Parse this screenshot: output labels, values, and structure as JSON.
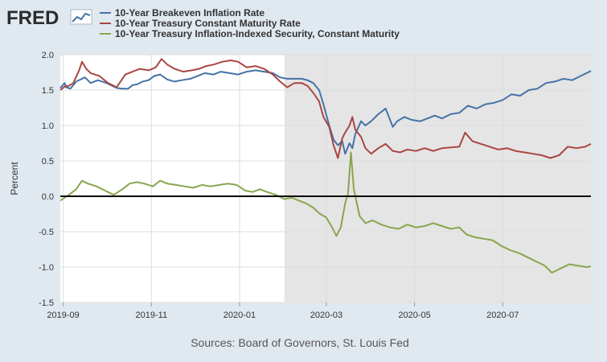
{
  "branding": {
    "logo_text": "FRED"
  },
  "source_note": "Sources: Board of Governors, St. Louis Fed",
  "colors": {
    "background": "#e1e9f0",
    "plot_background": "#ffffff",
    "recession_shade": "#e5e5e5",
    "grid": "#dddddd",
    "zero_line": "#000000"
  },
  "chart_data": {
    "type": "line",
    "ylabel": "Percent",
    "ylim": [
      -1.5,
      2.0
    ],
    "yticks": [
      "2.0",
      "1.5",
      "1.0",
      "0.5",
      "0.0",
      "-0.5",
      "-1.0",
      "-1.5"
    ],
    "xlim": [
      "2019-08-30",
      "2020-08-31"
    ],
    "xticks": [
      "2019-09",
      "2019-11",
      "2020-01",
      "2020-03",
      "2020-05",
      "2020-07"
    ],
    "legend_position": "top",
    "grid": true,
    "shaded_region": {
      "from": "2020-02-01",
      "to": "2020-08-31"
    },
    "zero_line": 0,
    "series": [
      {
        "name": "10-Year Breakeven Inflation Rate",
        "color": "#4572a7",
        "points": [
          [
            "2019-08-30",
            1.53
          ],
          [
            "2019-09-02",
            1.6
          ],
          [
            "2019-09-03",
            1.54
          ],
          [
            "2019-09-06",
            1.52
          ],
          [
            "2019-09-10",
            1.62
          ],
          [
            "2019-09-16",
            1.68
          ],
          [
            "2019-09-20",
            1.6
          ],
          [
            "2019-09-25",
            1.64
          ],
          [
            "2019-10-01",
            1.6
          ],
          [
            "2019-10-08",
            1.53
          ],
          [
            "2019-10-12",
            1.52
          ],
          [
            "2019-10-16",
            1.52
          ],
          [
            "2019-10-19",
            1.57
          ],
          [
            "2019-10-22",
            1.58
          ],
          [
            "2019-10-26",
            1.62
          ],
          [
            "2019-10-30",
            1.64
          ],
          [
            "2019-11-03",
            1.7
          ],
          [
            "2019-11-07",
            1.72
          ],
          [
            "2019-11-12",
            1.65
          ],
          [
            "2019-11-17",
            1.62
          ],
          [
            "2019-11-22",
            1.64
          ],
          [
            "2019-11-28",
            1.66
          ],
          [
            "2019-12-03",
            1.7
          ],
          [
            "2019-12-08",
            1.74
          ],
          [
            "2019-12-14",
            1.72
          ],
          [
            "2019-12-19",
            1.76
          ],
          [
            "2019-12-25",
            1.74
          ],
          [
            "2019-12-31",
            1.72
          ],
          [
            "2020-01-06",
            1.76
          ],
          [
            "2020-01-12",
            1.78
          ],
          [
            "2020-01-18",
            1.76
          ],
          [
            "2020-01-24",
            1.74
          ],
          [
            "2020-01-29",
            1.68
          ],
          [
            "2020-02-03",
            1.66
          ],
          [
            "2020-02-08",
            1.66
          ],
          [
            "2020-02-13",
            1.66
          ],
          [
            "2020-02-17",
            1.64
          ],
          [
            "2020-02-21",
            1.6
          ],
          [
            "2020-02-25",
            1.5
          ],
          [
            "2020-02-28",
            1.3
          ],
          [
            "2020-03-03",
            1.0
          ],
          [
            "2020-03-06",
            0.8
          ],
          [
            "2020-03-09",
            0.72
          ],
          [
            "2020-03-12",
            0.78
          ],
          [
            "2020-03-14",
            0.6
          ],
          [
            "2020-03-17",
            0.75
          ],
          [
            "2020-03-19",
            0.68
          ],
          [
            "2020-03-21",
            0.88
          ],
          [
            "2020-03-25",
            1.06
          ],
          [
            "2020-03-28",
            1.0
          ],
          [
            "2020-04-01",
            1.06
          ],
          [
            "2020-04-06",
            1.16
          ],
          [
            "2020-04-11",
            1.24
          ],
          [
            "2020-04-16",
            0.98
          ],
          [
            "2020-04-19",
            1.06
          ],
          [
            "2020-04-24",
            1.12
          ],
          [
            "2020-04-29",
            1.08
          ],
          [
            "2020-05-05",
            1.06
          ],
          [
            "2020-05-10",
            1.1
          ],
          [
            "2020-05-15",
            1.14
          ],
          [
            "2020-05-20",
            1.1
          ],
          [
            "2020-05-26",
            1.16
          ],
          [
            "2020-06-01",
            1.18
          ],
          [
            "2020-06-07",
            1.28
          ],
          [
            "2020-06-13",
            1.24
          ],
          [
            "2020-06-19",
            1.3
          ],
          [
            "2020-06-25",
            1.32
          ],
          [
            "2020-07-01",
            1.36
          ],
          [
            "2020-07-07",
            1.44
          ],
          [
            "2020-07-13",
            1.42
          ],
          [
            "2020-07-19",
            1.5
          ],
          [
            "2020-07-25",
            1.52
          ],
          [
            "2020-07-31",
            1.6
          ],
          [
            "2020-08-06",
            1.62
          ],
          [
            "2020-08-12",
            1.66
          ],
          [
            "2020-08-18",
            1.64
          ],
          [
            "2020-08-24",
            1.7
          ],
          [
            "2020-08-31",
            1.77
          ]
        ]
      },
      {
        "name": "10-Year Treasury Constant Maturity Rate",
        "color": "#aa4643",
        "points": [
          [
            "2019-08-30",
            1.5
          ],
          [
            "2019-09-02",
            1.55
          ],
          [
            "2019-09-05",
            1.56
          ],
          [
            "2019-09-08",
            1.6
          ],
          [
            "2019-09-12",
            1.78
          ],
          [
            "2019-09-14",
            1.9
          ],
          [
            "2019-09-17",
            1.8
          ],
          [
            "2019-09-20",
            1.74
          ],
          [
            "2019-09-26",
            1.7
          ],
          [
            "2019-10-02",
            1.6
          ],
          [
            "2019-10-08",
            1.54
          ],
          [
            "2019-10-14",
            1.72
          ],
          [
            "2019-10-19",
            1.76
          ],
          [
            "2019-10-24",
            1.8
          ],
          [
            "2019-10-30",
            1.78
          ],
          [
            "2019-11-04",
            1.82
          ],
          [
            "2019-11-08",
            1.94
          ],
          [
            "2019-11-12",
            1.86
          ],
          [
            "2019-11-17",
            1.8
          ],
          [
            "2019-11-23",
            1.76
          ],
          [
            "2019-11-29",
            1.78
          ],
          [
            "2019-12-04",
            1.8
          ],
          [
            "2019-12-09",
            1.84
          ],
          [
            "2019-12-14",
            1.86
          ],
          [
            "2019-12-20",
            1.9
          ],
          [
            "2019-12-26",
            1.92
          ],
          [
            "2019-12-31",
            1.9
          ],
          [
            "2020-01-06",
            1.82
          ],
          [
            "2020-01-12",
            1.84
          ],
          [
            "2020-01-18",
            1.8
          ],
          [
            "2020-01-24",
            1.72
          ],
          [
            "2020-01-29",
            1.62
          ],
          [
            "2020-02-03",
            1.54
          ],
          [
            "2020-02-08",
            1.6
          ],
          [
            "2020-02-13",
            1.6
          ],
          [
            "2020-02-17",
            1.56
          ],
          [
            "2020-02-21",
            1.46
          ],
          [
            "2020-02-25",
            1.34
          ],
          [
            "2020-02-28",
            1.12
          ],
          [
            "2020-03-03",
            0.98
          ],
          [
            "2020-03-06",
            0.72
          ],
          [
            "2020-03-09",
            0.54
          ],
          [
            "2020-03-12",
            0.82
          ],
          [
            "2020-03-14",
            0.9
          ],
          [
            "2020-03-17",
            1.0
          ],
          [
            "2020-03-19",
            1.12
          ],
          [
            "2020-03-21",
            0.94
          ],
          [
            "2020-03-25",
            0.84
          ],
          [
            "2020-03-28",
            0.68
          ],
          [
            "2020-04-01",
            0.6
          ],
          [
            "2020-04-06",
            0.68
          ],
          [
            "2020-04-11",
            0.74
          ],
          [
            "2020-04-16",
            0.64
          ],
          [
            "2020-04-21",
            0.62
          ],
          [
            "2020-04-26",
            0.66
          ],
          [
            "2020-05-02",
            0.64
          ],
          [
            "2020-05-08",
            0.68
          ],
          [
            "2020-05-14",
            0.64
          ],
          [
            "2020-05-20",
            0.68
          ],
          [
            "2020-05-26",
            0.69
          ],
          [
            "2020-06-01",
            0.7
          ],
          [
            "2020-06-05",
            0.9
          ],
          [
            "2020-06-10",
            0.78
          ],
          [
            "2020-06-16",
            0.74
          ],
          [
            "2020-06-22",
            0.7
          ],
          [
            "2020-06-28",
            0.66
          ],
          [
            "2020-07-04",
            0.68
          ],
          [
            "2020-07-10",
            0.64
          ],
          [
            "2020-07-16",
            0.62
          ],
          [
            "2020-07-22",
            0.6
          ],
          [
            "2020-07-28",
            0.58
          ],
          [
            "2020-08-03",
            0.54
          ],
          [
            "2020-08-09",
            0.58
          ],
          [
            "2020-08-15",
            0.7
          ],
          [
            "2020-08-21",
            0.68
          ],
          [
            "2020-08-27",
            0.7
          ],
          [
            "2020-08-31",
            0.74
          ]
        ]
      },
      {
        "name": "10-Year Treasury Inflation-Indexed Security, Constant Maturity",
        "color": "#89a54e",
        "points": [
          [
            "2019-08-30",
            -0.06
          ],
          [
            "2019-09-02",
            -0.02
          ],
          [
            "2019-09-05",
            0.02
          ],
          [
            "2019-09-10",
            0.1
          ],
          [
            "2019-09-14",
            0.22
          ],
          [
            "2019-09-18",
            0.18
          ],
          [
            "2019-09-24",
            0.14
          ],
          [
            "2019-09-30",
            0.08
          ],
          [
            "2019-10-06",
            0.02
          ],
          [
            "2019-10-12",
            0.1
          ],
          [
            "2019-10-17",
            0.18
          ],
          [
            "2019-10-22",
            0.2
          ],
          [
            "2019-10-27",
            0.18
          ],
          [
            "2019-11-02",
            0.14
          ],
          [
            "2019-11-07",
            0.22
          ],
          [
            "2019-11-12",
            0.18
          ],
          [
            "2019-11-18",
            0.16
          ],
          [
            "2019-11-24",
            0.14
          ],
          [
            "2019-11-30",
            0.12
          ],
          [
            "2019-12-06",
            0.16
          ],
          [
            "2019-12-12",
            0.14
          ],
          [
            "2019-12-18",
            0.16
          ],
          [
            "2019-12-24",
            0.18
          ],
          [
            "2019-12-30",
            0.16
          ],
          [
            "2020-01-05",
            0.08
          ],
          [
            "2020-01-10",
            0.06
          ],
          [
            "2020-01-15",
            0.1
          ],
          [
            "2020-01-20",
            0.06
          ],
          [
            "2020-01-26",
            0.02
          ],
          [
            "2020-02-01",
            -0.04
          ],
          [
            "2020-02-06",
            -0.02
          ],
          [
            "2020-02-11",
            -0.06
          ],
          [
            "2020-02-16",
            -0.1
          ],
          [
            "2020-02-21",
            -0.16
          ],
          [
            "2020-02-25",
            -0.24
          ],
          [
            "2020-03-01",
            -0.3
          ],
          [
            "2020-03-05",
            -0.44
          ],
          [
            "2020-03-08",
            -0.56
          ],
          [
            "2020-03-11",
            -0.44
          ],
          [
            "2020-03-14",
            -0.1
          ],
          [
            "2020-03-16",
            0.04
          ],
          [
            "2020-03-18",
            0.62
          ],
          [
            "2020-03-20",
            0.1
          ],
          [
            "2020-03-24",
            -0.28
          ],
          [
            "2020-03-28",
            -0.38
          ],
          [
            "2020-04-02",
            -0.34
          ],
          [
            "2020-04-08",
            -0.4
          ],
          [
            "2020-04-14",
            -0.44
          ],
          [
            "2020-04-20",
            -0.46
          ],
          [
            "2020-04-26",
            -0.4
          ],
          [
            "2020-05-02",
            -0.44
          ],
          [
            "2020-05-08",
            -0.42
          ],
          [
            "2020-05-14",
            -0.38
          ],
          [
            "2020-05-20",
            -0.42
          ],
          [
            "2020-05-26",
            -0.46
          ],
          [
            "2020-06-01",
            -0.44
          ],
          [
            "2020-06-06",
            -0.54
          ],
          [
            "2020-06-12",
            -0.58
          ],
          [
            "2020-06-18",
            -0.6
          ],
          [
            "2020-06-24",
            -0.62
          ],
          [
            "2020-06-30",
            -0.7
          ],
          [
            "2020-07-06",
            -0.76
          ],
          [
            "2020-07-12",
            -0.8
          ],
          [
            "2020-07-18",
            -0.86
          ],
          [
            "2020-07-24",
            -0.92
          ],
          [
            "2020-07-30",
            -0.98
          ],
          [
            "2020-08-04",
            -1.08
          ],
          [
            "2020-08-10",
            -1.02
          ],
          [
            "2020-08-16",
            -0.96
          ],
          [
            "2020-08-22",
            -0.98
          ],
          [
            "2020-08-28",
            -1.0
          ],
          [
            "2020-08-31",
            -0.99
          ]
        ]
      }
    ]
  }
}
